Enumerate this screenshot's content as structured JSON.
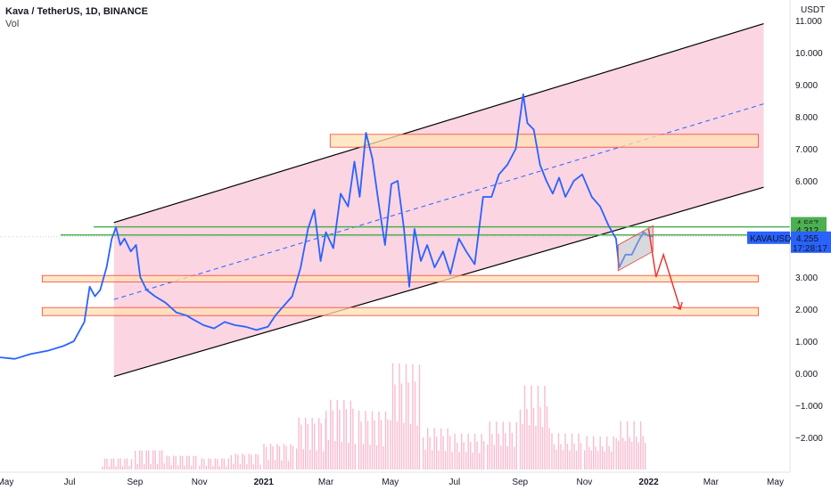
{
  "header": {
    "symbol_line": "Kava / TetherUS, 1D, BINANCE",
    "volume_label": "Vol"
  },
  "price_axis": {
    "unit": "USDT",
    "ticks": [
      "11.000",
      "10.000",
      "9.000",
      "8.000",
      "7.000",
      "6.000",
      "3.000",
      "2.000",
      "1.000",
      "0.000",
      "−1.000",
      "−2.000"
    ]
  },
  "time_axis": {
    "ticks": [
      "May",
      "Jul",
      "Sep",
      "Nov",
      "2021",
      "Mar",
      "May",
      "Jul",
      "Sep",
      "Nov",
      "2022",
      "Mar",
      "May"
    ]
  },
  "price_tags": {
    "upper_green": "4.567",
    "lower_green": "4.312",
    "ticker": "KAVAUSDT",
    "last_price": "4.255",
    "countdown": "17:28:17"
  },
  "colors": {
    "price_line": "#2962ff",
    "channel_fill": "#f8bbd0",
    "channel_border": "#000000",
    "support_line": "#4caf50",
    "zone_fill": "#ffe0b2",
    "zone_border": "#f44336",
    "projection": "#e53935",
    "volume_bar": "#f8bbd0"
  },
  "chart_data": {
    "type": "line",
    "title": "Kava / TetherUS, 1D, BINANCE",
    "xlabel": "",
    "ylabel": "USDT",
    "ylim": [
      -2.8,
      11.5
    ],
    "series": [
      {
        "name": "KAVAUSDT",
        "points": [
          [
            "2020-04-25",
            0.5
          ],
          [
            "2020-05-10",
            0.45
          ],
          [
            "2020-05-25",
            0.6
          ],
          [
            "2020-06-10",
            0.7
          ],
          [
            "2020-06-25",
            0.85
          ],
          [
            "2020-07-05",
            1.0
          ],
          [
            "2020-07-15",
            1.6
          ],
          [
            "2020-07-20",
            2.7
          ],
          [
            "2020-07-25",
            2.4
          ],
          [
            "2020-07-30",
            2.6
          ],
          [
            "2020-08-05",
            3.3
          ],
          [
            "2020-08-10",
            4.2
          ],
          [
            "2020-08-14",
            4.55
          ],
          [
            "2020-08-18",
            4.0
          ],
          [
            "2020-08-22",
            4.2
          ],
          [
            "2020-08-28",
            3.8
          ],
          [
            "2020-09-02",
            4.0
          ],
          [
            "2020-09-06",
            3.0
          ],
          [
            "2020-09-12",
            2.6
          ],
          [
            "2020-09-20",
            2.4
          ],
          [
            "2020-09-30",
            2.2
          ],
          [
            "2020-10-10",
            1.9
          ],
          [
            "2020-10-20",
            1.8
          ],
          [
            "2020-10-25",
            1.7
          ],
          [
            "2020-11-05",
            1.5
          ],
          [
            "2020-11-15",
            1.4
          ],
          [
            "2020-11-25",
            1.6
          ],
          [
            "2020-12-05",
            1.5
          ],
          [
            "2020-12-15",
            1.45
          ],
          [
            "2020-12-25",
            1.35
          ],
          [
            "2021-01-05",
            1.45
          ],
          [
            "2021-01-12",
            1.8
          ],
          [
            "2021-01-20",
            2.1
          ],
          [
            "2021-01-28",
            2.4
          ],
          [
            "2021-02-05",
            3.3
          ],
          [
            "2021-02-12",
            4.5
          ],
          [
            "2021-02-18",
            5.1
          ],
          [
            "2021-02-24",
            3.5
          ],
          [
            "2021-03-01",
            4.4
          ],
          [
            "2021-03-08",
            3.9
          ],
          [
            "2021-03-15",
            5.6
          ],
          [
            "2021-03-22",
            5.2
          ],
          [
            "2021-03-28",
            6.6
          ],
          [
            "2021-04-02",
            5.5
          ],
          [
            "2021-04-08",
            7.5
          ],
          [
            "2021-04-14",
            6.7
          ],
          [
            "2021-04-20",
            5.3
          ],
          [
            "2021-04-26",
            4.0
          ],
          [
            "2021-05-02",
            5.9
          ],
          [
            "2021-05-08",
            6.0
          ],
          [
            "2021-05-14",
            4.5
          ],
          [
            "2021-05-19",
            2.7
          ],
          [
            "2021-05-24",
            4.5
          ],
          [
            "2021-05-30",
            3.5
          ],
          [
            "2021-06-05",
            4.0
          ],
          [
            "2021-06-12",
            3.3
          ],
          [
            "2021-06-20",
            3.8
          ],
          [
            "2021-06-27",
            3.1
          ],
          [
            "2021-07-05",
            4.2
          ],
          [
            "2021-07-12",
            3.8
          ],
          [
            "2021-07-20",
            3.4
          ],
          [
            "2021-07-28",
            5.5
          ],
          [
            "2021-08-05",
            5.5
          ],
          [
            "2021-08-12",
            6.2
          ],
          [
            "2021-08-20",
            6.5
          ],
          [
            "2021-08-28",
            7.0
          ],
          [
            "2021-09-04",
            8.7
          ],
          [
            "2021-09-08",
            7.8
          ],
          [
            "2021-09-14",
            7.6
          ],
          [
            "2021-09-20",
            6.5
          ],
          [
            "2021-09-26",
            6.0
          ],
          [
            "2021-10-02",
            5.6
          ],
          [
            "2021-10-08",
            6.1
          ],
          [
            "2021-10-14",
            5.5
          ],
          [
            "2021-10-22",
            6.0
          ],
          [
            "2021-10-30",
            6.2
          ],
          [
            "2021-11-08",
            5.5
          ],
          [
            "2021-11-16",
            5.2
          ],
          [
            "2021-11-24",
            4.6
          ],
          [
            "2021-12-01",
            4.2
          ],
          [
            "2021-12-04",
            3.3
          ],
          [
            "2021-12-10",
            3.7
          ],
          [
            "2021-12-16",
            3.7
          ],
          [
            "2021-12-22",
            4.1
          ],
          [
            "2021-12-27",
            4.4
          ],
          [
            "2021-12-31",
            4.3
          ],
          [
            "2022-01-05",
            4.26
          ]
        ]
      }
    ],
    "horizontal_lines": [
      {
        "name": "resistance",
        "value": 4.567
      },
      {
        "name": "support",
        "value": 4.312
      }
    ],
    "zones": [
      {
        "from": "2021-03-05",
        "to": "2022-04-15",
        "low": 7.05,
        "high": 7.45
      },
      {
        "from": "2020-06-05",
        "to": "2022-04-15",
        "low": 2.85,
        "high": 3.05
      },
      {
        "from": "2020-06-05",
        "to": "2022-04-15",
        "low": 1.8,
        "high": 2.05
      }
    ],
    "channel": {
      "start": "2020-08-12",
      "end": "2022-04-20",
      "upper": [
        4.7,
        10.9
      ],
      "lower": [
        -0.1,
        5.8
      ],
      "mid": [
        2.3,
        8.4
      ]
    },
    "projection": [
      [
        "2022-01-01",
        4.5
      ],
      [
        "2022-01-08",
        3.0
      ],
      [
        "2022-01-15",
        3.7
      ],
      [
        "2022-01-31",
        2.0
      ]
    ],
    "volume": [
      [
        "2020-08",
        0.2
      ],
      [
        "2020-09",
        0.35
      ],
      [
        "2020-10",
        0.25
      ],
      [
        "2020-11",
        0.2
      ],
      [
        "2020-12",
        0.28
      ],
      [
        "2021-01",
        0.45
      ],
      [
        "2021-02",
        0.9
      ],
      [
        "2021-03",
        1.2
      ],
      [
        "2021-04",
        1.0
      ],
      [
        "2021-05",
        1.8
      ],
      [
        "2021-06",
        0.7
      ],
      [
        "2021-07",
        0.6
      ],
      [
        "2021-08",
        0.8
      ],
      [
        "2021-09",
        1.4
      ],
      [
        "2021-10",
        0.6
      ],
      [
        "2021-11",
        0.55
      ],
      [
        "2021-12",
        0.8
      ]
    ]
  }
}
